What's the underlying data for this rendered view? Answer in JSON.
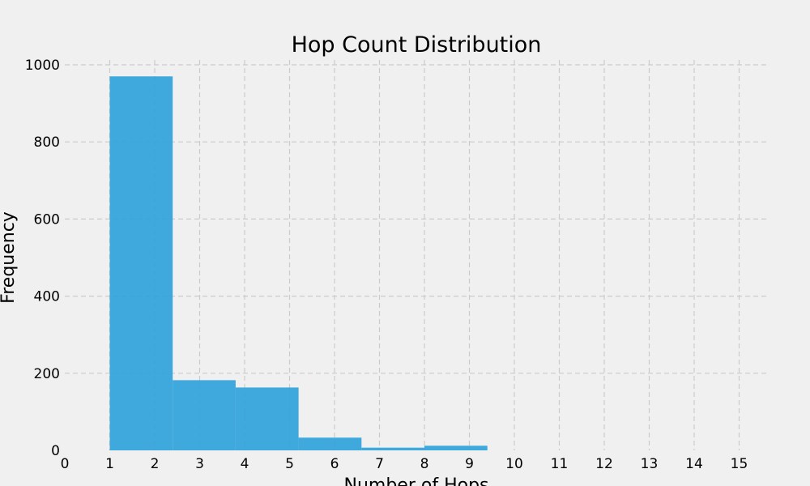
{
  "chart_data": {
    "type": "bar",
    "title": "Hop Count Distribution",
    "xlabel": "Number of Hops",
    "ylabel": "Frequency",
    "xlim": [
      0,
      15.6
    ],
    "ylim": [
      0,
      1000
    ],
    "x_ticks": [
      "0",
      "1",
      "2",
      "3",
      "4",
      "5",
      "6",
      "7",
      "8",
      "9",
      "10",
      "11",
      "12",
      "13",
      "14",
      "15"
    ],
    "y_ticks": [
      "0",
      "200",
      "400",
      "600",
      "800",
      "1000"
    ],
    "bins": [
      {
        "start": 1.0,
        "end": 2.4,
        "value": 970
      },
      {
        "start": 2.4,
        "end": 3.8,
        "value": 182
      },
      {
        "start": 3.8,
        "end": 5.2,
        "value": 163
      },
      {
        "start": 5.2,
        "end": 6.6,
        "value": 33
      },
      {
        "start": 6.6,
        "end": 8.0,
        "value": 7
      },
      {
        "start": 8.0,
        "end": 9.4,
        "value": 12
      }
    ],
    "bar_color": "#30a2da",
    "grid": true
  }
}
